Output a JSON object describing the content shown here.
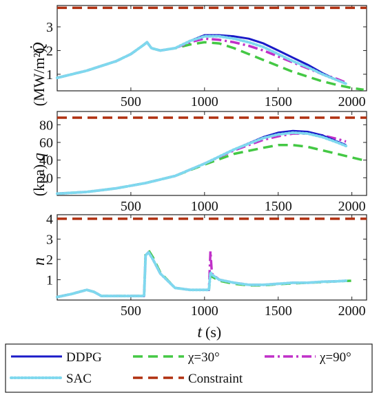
{
  "chart_data": [
    {
      "type": "line",
      "ylabel_symbol": "Q̇",
      "ylabel_unit": "(MW/m²)",
      "xlim": [
        0,
        2100
      ],
      "ylim": [
        0.3,
        3.9
      ],
      "xticks": [
        500,
        1000,
        1500,
        2000
      ],
      "yticks": [
        1,
        2,
        3
      ],
      "series": [
        {
          "name": "DDPG",
          "x": [
            0,
            100,
            200,
            300,
            400,
            500,
            590,
            610,
            640,
            700,
            800,
            900,
            1000,
            1100,
            1200,
            1300,
            1400,
            1500,
            1600,
            1700,
            1800,
            1900,
            1960
          ],
          "y": [
            0.85,
            1.0,
            1.15,
            1.35,
            1.55,
            1.85,
            2.25,
            2.35,
            2.1,
            2.0,
            2.1,
            2.4,
            2.65,
            2.65,
            2.6,
            2.5,
            2.3,
            2.0,
            1.7,
            1.4,
            1.05,
            0.75,
            0.6
          ]
        },
        {
          "name": "SAC",
          "x": [
            0,
            100,
            200,
            300,
            400,
            500,
            590,
            610,
            640,
            700,
            800,
            900,
            1000,
            1100,
            1200,
            1300,
            1400,
            1500,
            1600,
            1700,
            1800,
            1900,
            1960
          ],
          "y": [
            0.85,
            1.0,
            1.15,
            1.35,
            1.55,
            1.85,
            2.25,
            2.35,
            2.1,
            2.0,
            2.1,
            2.4,
            2.6,
            2.6,
            2.5,
            2.35,
            2.15,
            1.85,
            1.55,
            1.3,
            1.0,
            0.75,
            0.6
          ]
        },
        {
          "name": "χ=30°",
          "x": [
            0,
            100,
            200,
            300,
            400,
            500,
            590,
            610,
            640,
            700,
            800,
            900,
            1000,
            1100,
            1200,
            1300,
            1400,
            1500,
            1600,
            1700,
            1800,
            1900,
            2000,
            2080
          ],
          "y": [
            0.85,
            1.0,
            1.15,
            1.35,
            1.55,
            1.85,
            2.25,
            2.35,
            2.1,
            2.0,
            2.1,
            2.25,
            2.35,
            2.3,
            2.1,
            1.85,
            1.6,
            1.35,
            1.1,
            0.9,
            0.7,
            0.55,
            0.42,
            0.35
          ]
        },
        {
          "name": "χ=90°",
          "x": [
            0,
            100,
            200,
            300,
            400,
            500,
            590,
            610,
            640,
            700,
            800,
            900,
            1000,
            1100,
            1200,
            1300,
            1400,
            1500,
            1600,
            1700,
            1800,
            1900,
            1960
          ],
          "y": [
            0.85,
            1.0,
            1.15,
            1.35,
            1.55,
            1.85,
            2.25,
            2.35,
            2.1,
            2.0,
            2.1,
            2.35,
            2.5,
            2.45,
            2.35,
            2.2,
            2.0,
            1.75,
            1.5,
            1.25,
            1.0,
            0.8,
            0.65
          ]
        },
        {
          "name": "Constraint",
          "x": [
            0,
            2100
          ],
          "y": [
            3.8,
            3.8
          ]
        }
      ]
    },
    {
      "type": "line",
      "ylabel_symbol": "q",
      "ylabel_unit": "(kpa)",
      "xlim": [
        0,
        2100
      ],
      "ylim": [
        0,
        95
      ],
      "xticks": [
        500,
        1000,
        1500,
        2000
      ],
      "yticks": [
        20,
        40,
        60,
        80
      ],
      "series": [
        {
          "name": "DDPG",
          "x": [
            0,
            200,
            400,
            600,
            800,
            1000,
            1200,
            1400,
            1500,
            1600,
            1700,
            1800,
            1900,
            1960
          ],
          "y": [
            2,
            4,
            8,
            14,
            22,
            36,
            52,
            66,
            71,
            73,
            72,
            68,
            61,
            57
          ]
        },
        {
          "name": "SAC",
          "x": [
            0,
            200,
            400,
            600,
            800,
            1000,
            1200,
            1400,
            1500,
            1600,
            1700,
            1800,
            1900,
            1960
          ],
          "y": [
            2,
            4,
            8,
            14,
            22,
            36,
            52,
            65,
            69,
            71,
            70,
            66,
            60,
            56
          ]
        },
        {
          "name": "χ=30°",
          "x": [
            0,
            200,
            400,
            600,
            800,
            1000,
            1200,
            1400,
            1500,
            1600,
            1700,
            1800,
            1900,
            2000,
            2100
          ],
          "y": [
            2,
            4,
            8,
            14,
            22,
            35,
            47,
            54,
            57,
            57,
            55,
            51,
            47,
            43,
            39
          ]
        },
        {
          "name": "χ=90°",
          "x": [
            0,
            200,
            400,
            600,
            800,
            1000,
            1200,
            1400,
            1500,
            1600,
            1700,
            1800,
            1900,
            1960
          ],
          "y": [
            2,
            4,
            8,
            14,
            22,
            36,
            51,
            63,
            67,
            70,
            70,
            68,
            64,
            61
          ]
        },
        {
          "name": "Constraint",
          "x": [
            0,
            2100
          ],
          "y": [
            88,
            88
          ]
        }
      ]
    },
    {
      "type": "line",
      "ylabel_symbol": "n",
      "xlabel_symbol": "t",
      "xlabel_unit": "(s)",
      "xlim": [
        0,
        2100
      ],
      "ylim": [
        0,
        4.2
      ],
      "xticks": [
        500,
        1000,
        1500,
        2000
      ],
      "yticks": [
        1,
        2,
        3,
        4
      ],
      "series": [
        {
          "name": "DDPG",
          "x": [
            0,
            100,
            200,
            250,
            300,
            350,
            400,
            500,
            590,
            600,
            620,
            650,
            700,
            800,
            900,
            1000,
            1030,
            1040,
            1050,
            1100,
            1200,
            1300,
            1400,
            1500,
            1600,
            1700,
            1800,
            1900,
            1960
          ],
          "y": [
            0.15,
            0.3,
            0.5,
            0.4,
            0.2,
            0.2,
            0.2,
            0.2,
            0.2,
            2.2,
            2.35,
            2.0,
            1.3,
            0.6,
            0.5,
            0.5,
            0.5,
            1.35,
            1.25,
            1.0,
            0.85,
            0.75,
            0.75,
            0.8,
            0.85,
            0.85,
            0.9,
            0.92,
            0.95
          ]
        },
        {
          "name": "SAC",
          "x": [
            0,
            100,
            200,
            250,
            300,
            350,
            400,
            500,
            590,
            600,
            620,
            650,
            700,
            800,
            900,
            1000,
            1030,
            1040,
            1050,
            1100,
            1200,
            1300,
            1400,
            1500,
            1600,
            1700,
            1800,
            1900,
            1960
          ],
          "y": [
            0.15,
            0.3,
            0.5,
            0.4,
            0.2,
            0.2,
            0.2,
            0.2,
            0.2,
            2.2,
            2.35,
            2.0,
            1.3,
            0.6,
            0.5,
            0.5,
            0.5,
            1.35,
            1.25,
            1.0,
            0.85,
            0.75,
            0.75,
            0.8,
            0.85,
            0.85,
            0.9,
            0.92,
            0.95
          ]
        },
        {
          "name": "χ=30°",
          "x": [
            0,
            100,
            200,
            250,
            300,
            350,
            400,
            500,
            590,
            600,
            620,
            650,
            700,
            800,
            900,
            1000,
            1030,
            1040,
            1050,
            1100,
            1200,
            1300,
            1400,
            1500,
            1600,
            1700,
            1800,
            1900,
            2000
          ],
          "y": [
            0.15,
            0.3,
            0.5,
            0.4,
            0.2,
            0.2,
            0.2,
            0.2,
            0.2,
            2.3,
            2.45,
            2.1,
            1.35,
            0.6,
            0.5,
            0.5,
            0.5,
            1.2,
            1.15,
            0.95,
            0.8,
            0.72,
            0.72,
            0.78,
            0.82,
            0.85,
            0.88,
            0.92,
            0.95
          ]
        },
        {
          "name": "χ=90°",
          "x": [
            0,
            100,
            200,
            250,
            300,
            350,
            400,
            500,
            590,
            600,
            620,
            650,
            700,
            800,
            900,
            1000,
            1030,
            1040,
            1050,
            1100,
            1200,
            1300,
            1400,
            1500,
            1600,
            1700,
            1800,
            1900,
            1960
          ],
          "y": [
            0.15,
            0.3,
            0.5,
            0.4,
            0.2,
            0.2,
            0.2,
            0.2,
            0.2,
            2.2,
            2.35,
            2.0,
            1.3,
            0.6,
            0.5,
            0.5,
            0.5,
            2.4,
            1.3,
            1.0,
            0.85,
            0.75,
            0.75,
            0.8,
            0.85,
            0.85,
            0.9,
            0.92,
            0.95
          ]
        },
        {
          "name": "Constraint",
          "x": [
            0,
            2100
          ],
          "y": [
            4,
            4
          ]
        }
      ]
    }
  ],
  "legend": {
    "placement": "bottom",
    "entries": [
      {
        "name": "DDPG",
        "color": "#1a1ac8",
        "style": "solid"
      },
      {
        "name": "χ=30°",
        "color": "#44c844",
        "style": "dashed"
      },
      {
        "name": "χ=90°",
        "color": "#c030c8",
        "style": "dashdot"
      },
      {
        "name": "SAC",
        "color": "#7fd8ee",
        "style": "dotted"
      },
      {
        "name": "Constraint",
        "color": "#b03010",
        "style": "dashed"
      }
    ]
  },
  "colors": {
    "DDPG": "#1a1ac8",
    "SAC": "#7fd8ee",
    "χ=30°": "#44c844",
    "χ=90°": "#c030c8",
    "Constraint": "#b03010"
  }
}
